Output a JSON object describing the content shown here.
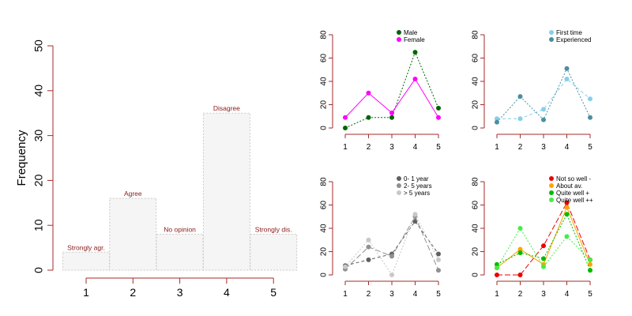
{
  "colors": {
    "axis": "#a52a2a",
    "bar_fill": "#f5f5f5",
    "bar_border": "#c8c8c8",
    "bar_label": "#8b1a1a",
    "text": "#000000"
  },
  "chart_data": [
    {
      "type": "bar",
      "categories": [
        "1",
        "2",
        "3",
        "4",
        "5"
      ],
      "values": [
        4,
        16,
        8,
        35,
        8
      ],
      "bar_labels": [
        "Strongly agr.",
        "Agree",
        "No opinion",
        "Disagree",
        "Strongly dis."
      ],
      "ylabel": "Frequency",
      "ylim": [
        0,
        50
      ],
      "yticks": [
        "0",
        "10",
        "20",
        "30",
        "40",
        "50"
      ],
      "grid": false
    },
    {
      "type": "line",
      "x": [
        "1",
        "2",
        "3",
        "4",
        "5"
      ],
      "ylim": [
        0,
        80
      ],
      "yticks": [
        "0",
        "20",
        "40",
        "60",
        "80"
      ],
      "legend_position": "top-right",
      "series": [
        {
          "name": "Male",
          "color": "#006400",
          "dash": "dotted",
          "values": [
            0,
            9,
            9,
            65,
            17
          ]
        },
        {
          "name": "Female",
          "color": "#ff00ff",
          "dash": "solid",
          "values": [
            9,
            30,
            13,
            42,
            9
          ]
        }
      ]
    },
    {
      "type": "line",
      "x": [
        "1",
        "2",
        "3",
        "4",
        "5"
      ],
      "ylim": [
        0,
        80
      ],
      "yticks": [
        "0",
        "20",
        "40",
        "60",
        "80"
      ],
      "legend_position": "top-right",
      "series": [
        {
          "name": "First time",
          "color": "#87ceeb",
          "dash": "dashed",
          "values": [
            8,
            8,
            16,
            42,
            25
          ]
        },
        {
          "name": "Experienced",
          "color": "#4a8fa0",
          "dash": "dotted",
          "values": [
            5,
            27,
            7,
            51,
            9
          ]
        }
      ]
    },
    {
      "type": "line",
      "x": [
        "1",
        "2",
        "3",
        "4",
        "5"
      ],
      "ylim": [
        0,
        80
      ],
      "yticks": [
        "0",
        "20",
        "40",
        "60",
        "80"
      ],
      "legend_position": "top-right",
      "series": [
        {
          "name": "0- 1 year",
          "color": "#606060",
          "dash": "dashed",
          "values": [
            8,
            13,
            18,
            46,
            18
          ]
        },
        {
          "name": "2- 5 years",
          "color": "#909090",
          "dash": "longdash",
          "values": [
            5,
            24,
            16,
            50,
            4
          ]
        },
        {
          "name": "> 5 years",
          "color": "#c8c8c8",
          "dash": "dotted",
          "values": [
            7,
            30,
            0,
            52,
            13
          ]
        }
      ]
    },
    {
      "type": "line",
      "x": [
        "1",
        "2",
        "3",
        "4",
        "5"
      ],
      "ylim": [
        0,
        80
      ],
      "yticks": [
        "0",
        "20",
        "40",
        "60",
        "80"
      ],
      "legend_position": "top-right",
      "series": [
        {
          "name": "Not so well -",
          "color": "#ee0000",
          "dash": "longdash",
          "values": [
            0,
            0,
            25,
            62,
            13
          ]
        },
        {
          "name": "About av.",
          "color": "#ffa500",
          "dash": "solid",
          "values": [
            6,
            22,
            9,
            58,
            9
          ]
        },
        {
          "name": "Quite well +",
          "color": "#00bb00",
          "dash": "dotted",
          "values": [
            9,
            19,
            14,
            52,
            4
          ]
        },
        {
          "name": "Quite well ++",
          "color": "#44ee44",
          "dash": "dotted",
          "values": [
            6,
            40,
            7,
            33,
            13
          ]
        }
      ]
    }
  ]
}
